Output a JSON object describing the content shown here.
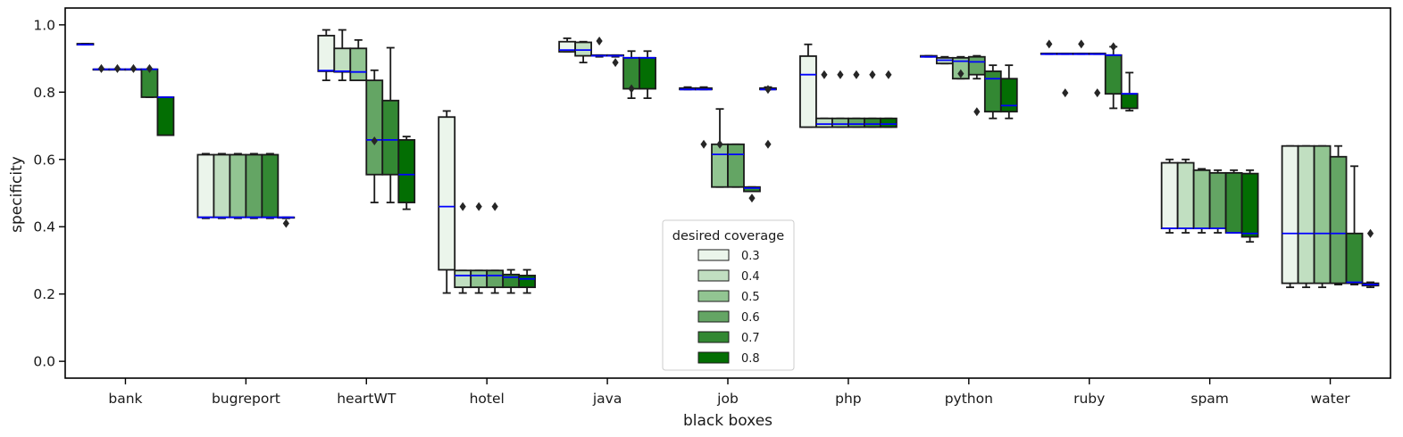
{
  "chart_data": {
    "type": "boxplot",
    "xlabel": "black boxes",
    "ylabel": "specificity",
    "ylim": [
      -0.05,
      1.05
    ],
    "yticks": [
      "0.0",
      "0.2",
      "0.4",
      "0.6",
      "0.8",
      "1.0"
    ],
    "categories": [
      "bank",
      "bugreport",
      "heartWT",
      "hotel",
      "java",
      "job",
      "php",
      "python",
      "ruby",
      "spam",
      "water"
    ],
    "legend": {
      "title": "desired coverage",
      "placement": "bottom-center",
      "entries": [
        "0.3",
        "0.4",
        "0.5",
        "0.6",
        "0.7",
        "0.8"
      ]
    },
    "colors": {
      "series": [
        "#ebf5eb",
        "#c1dfc1",
        "#92c592",
        "#64a564",
        "#338833",
        "#036e03"
      ],
      "median": "#0000ff",
      "edge": "#1a1a1a",
      "axis": "#000000"
    },
    "series": [
      {
        "name": "0.3",
        "boxes": [
          {
            "whislo": 0.941,
            "q1": 0.941,
            "med": 0.941,
            "q3": 0.944,
            "whishi": 0.944,
            "fliers": []
          },
          {
            "whislo": 0.425,
            "q1": 0.428,
            "med": 0.428,
            "q3": 0.614,
            "whishi": 0.617,
            "fliers": []
          },
          {
            "whislo": 0.835,
            "q1": 0.862,
            "med": 0.864,
            "q3": 0.968,
            "whishi": 0.985,
            "fliers": []
          },
          {
            "whislo": 0.203,
            "q1": 0.272,
            "med": 0.46,
            "q3": 0.726,
            "whishi": 0.744,
            "fliers": []
          },
          {
            "whislo": 0.92,
            "q1": 0.92,
            "med": 0.925,
            "q3": 0.95,
            "whishi": 0.96,
            "fliers": []
          },
          {
            "whislo": 0.808,
            "q1": 0.808,
            "med": 0.808,
            "q3": 0.812,
            "whishi": 0.815,
            "fliers": []
          },
          {
            "whislo": 0.696,
            "q1": 0.696,
            "med": 0.852,
            "q3": 0.907,
            "whishi": 0.942,
            "fliers": []
          },
          {
            "whislo": 0.905,
            "q1": 0.905,
            "med": 0.905,
            "q3": 0.908,
            "whishi": 0.908,
            "fliers": []
          },
          {
            "whislo": 0.913,
            "q1": 0.913,
            "med": 0.913,
            "q3": 0.915,
            "whishi": 0.915,
            "fliers": [
              0.943
            ]
          },
          {
            "whislo": 0.382,
            "q1": 0.395,
            "med": 0.395,
            "q3": 0.59,
            "whishi": 0.6,
            "fliers": []
          },
          {
            "whislo": 0.22,
            "q1": 0.232,
            "med": 0.38,
            "q3": 0.64,
            "whishi": 0.64,
            "fliers": []
          }
        ]
      },
      {
        "name": "0.4",
        "boxes": [
          {
            "whislo": 0.868,
            "q1": 0.868,
            "med": 0.868,
            "q3": 0.868,
            "whishi": 0.868,
            "fliers": [
              0.87
            ]
          },
          {
            "whislo": 0.425,
            "q1": 0.428,
            "med": 0.428,
            "q3": 0.614,
            "whishi": 0.617,
            "fliers": []
          },
          {
            "whislo": 0.835,
            "q1": 0.86,
            "med": 0.862,
            "q3": 0.93,
            "whishi": 0.985,
            "fliers": []
          },
          {
            "whislo": 0.203,
            "q1": 0.22,
            "med": 0.255,
            "q3": 0.27,
            "whishi": 0.27,
            "fliers": [
              0.46
            ]
          },
          {
            "whislo": 0.888,
            "q1": 0.908,
            "med": 0.925,
            "q3": 0.948,
            "whishi": 0.95,
            "fliers": []
          },
          {
            "whislo": 0.808,
            "q1": 0.808,
            "med": 0.808,
            "q3": 0.812,
            "whishi": 0.815,
            "fliers": [
              0.645
            ]
          },
          {
            "whislo": 0.696,
            "q1": 0.696,
            "med": 0.705,
            "q3": 0.722,
            "whishi": 0.722,
            "fliers": [
              0.852
            ]
          },
          {
            "whislo": 0.885,
            "q1": 0.885,
            "med": 0.895,
            "q3": 0.902,
            "whishi": 0.905,
            "fliers": []
          },
          {
            "whislo": 0.913,
            "q1": 0.913,
            "med": 0.913,
            "q3": 0.915,
            "whishi": 0.915,
            "fliers": [
              0.798
            ]
          },
          {
            "whislo": 0.382,
            "q1": 0.395,
            "med": 0.395,
            "q3": 0.59,
            "whishi": 0.6,
            "fliers": []
          },
          {
            "whislo": 0.22,
            "q1": 0.232,
            "med": 0.38,
            "q3": 0.64,
            "whishi": 0.64,
            "fliers": []
          }
        ]
      },
      {
        "name": "0.5",
        "boxes": [
          {
            "whislo": 0.868,
            "q1": 0.868,
            "med": 0.868,
            "q3": 0.868,
            "whishi": 0.868,
            "fliers": [
              0.87
            ]
          },
          {
            "whislo": 0.425,
            "q1": 0.428,
            "med": 0.428,
            "q3": 0.614,
            "whishi": 0.617,
            "fliers": []
          },
          {
            "whislo": 0.835,
            "q1": 0.835,
            "med": 0.86,
            "q3": 0.93,
            "whishi": 0.955,
            "fliers": []
          },
          {
            "whislo": 0.203,
            "q1": 0.22,
            "med": 0.255,
            "q3": 0.27,
            "whishi": 0.27,
            "fliers": [
              0.46
            ]
          },
          {
            "whislo": 0.905,
            "q1": 0.908,
            "med": 0.908,
            "q3": 0.91,
            "whishi": 0.91,
            "fliers": [
              0.952
            ]
          },
          {
            "whislo": 0.518,
            "q1": 0.518,
            "med": 0.615,
            "q3": 0.645,
            "whishi": 0.75,
            "fliers": [
              0.645
            ]
          },
          {
            "whislo": 0.696,
            "q1": 0.696,
            "med": 0.705,
            "q3": 0.722,
            "whishi": 0.722,
            "fliers": [
              0.852
            ]
          },
          {
            "whislo": 0.84,
            "q1": 0.84,
            "med": 0.892,
            "q3": 0.902,
            "whishi": 0.905,
            "fliers": [
              0.855
            ]
          },
          {
            "whislo": 0.913,
            "q1": 0.913,
            "med": 0.913,
            "q3": 0.915,
            "whishi": 0.915,
            "fliers": [
              0.943
            ]
          },
          {
            "whislo": 0.382,
            "q1": 0.395,
            "med": 0.395,
            "q3": 0.568,
            "whishi": 0.572,
            "fliers": []
          },
          {
            "whislo": 0.22,
            "q1": 0.232,
            "med": 0.38,
            "q3": 0.64,
            "whishi": 0.64,
            "fliers": []
          }
        ]
      },
      {
        "name": "0.6",
        "boxes": [
          {
            "whislo": 0.868,
            "q1": 0.868,
            "med": 0.868,
            "q3": 0.868,
            "whishi": 0.868,
            "fliers": [
              0.87
            ]
          },
          {
            "whislo": 0.425,
            "q1": 0.428,
            "med": 0.428,
            "q3": 0.614,
            "whishi": 0.617,
            "fliers": []
          },
          {
            "whislo": 0.472,
            "q1": 0.555,
            "med": 0.658,
            "q3": 0.835,
            "whishi": 0.865,
            "fliers": [
              0.655
            ]
          },
          {
            "whislo": 0.203,
            "q1": 0.22,
            "med": 0.255,
            "q3": 0.27,
            "whishi": 0.27,
            "fliers": [
              0.46
            ]
          },
          {
            "whislo": 0.905,
            "q1": 0.908,
            "med": 0.908,
            "q3": 0.91,
            "whishi": 0.91,
            "fliers": [
              0.888
            ]
          },
          {
            "whislo": 0.518,
            "q1": 0.518,
            "med": 0.615,
            "q3": 0.645,
            "whishi": 0.645,
            "fliers": []
          },
          {
            "whislo": 0.696,
            "q1": 0.696,
            "med": 0.705,
            "q3": 0.722,
            "whishi": 0.722,
            "fliers": [
              0.852
            ]
          },
          {
            "whislo": 0.84,
            "q1": 0.852,
            "med": 0.89,
            "q3": 0.905,
            "whishi": 0.908,
            "fliers": [
              0.742
            ]
          },
          {
            "whislo": 0.913,
            "q1": 0.913,
            "med": 0.913,
            "q3": 0.915,
            "whishi": 0.915,
            "fliers": [
              0.798
            ]
          },
          {
            "whislo": 0.382,
            "q1": 0.395,
            "med": 0.395,
            "q3": 0.56,
            "whishi": 0.568,
            "fliers": []
          },
          {
            "whislo": 0.228,
            "q1": 0.232,
            "med": 0.38,
            "q3": 0.608,
            "whishi": 0.64,
            "fliers": []
          }
        ]
      },
      {
        "name": "0.7",
        "boxes": [
          {
            "whislo": 0.785,
            "q1": 0.785,
            "med": 0.868,
            "q3": 0.868,
            "whishi": 0.868,
            "fliers": [
              0.87
            ]
          },
          {
            "whislo": 0.425,
            "q1": 0.428,
            "med": 0.428,
            "q3": 0.614,
            "whishi": 0.617,
            "fliers": []
          },
          {
            "whislo": 0.472,
            "q1": 0.555,
            "med": 0.658,
            "q3": 0.775,
            "whishi": 0.932,
            "fliers": []
          },
          {
            "whislo": 0.203,
            "q1": 0.22,
            "med": 0.25,
            "q3": 0.258,
            "whishi": 0.272,
            "fliers": []
          },
          {
            "whislo": 0.782,
            "q1": 0.81,
            "med": 0.902,
            "q3": 0.902,
            "whishi": 0.922,
            "fliers": [
              0.81
            ]
          },
          {
            "whislo": 0.505,
            "q1": 0.505,
            "med": 0.515,
            "q3": 0.518,
            "whishi": 0.518,
            "fliers": [
              0.485
            ]
          },
          {
            "whislo": 0.696,
            "q1": 0.696,
            "med": 0.705,
            "q3": 0.722,
            "whishi": 0.722,
            "fliers": [
              0.852
            ]
          },
          {
            "whislo": 0.722,
            "q1": 0.742,
            "med": 0.84,
            "q3": 0.862,
            "whishi": 0.88,
            "fliers": []
          },
          {
            "whislo": 0.752,
            "q1": 0.795,
            "med": 0.91,
            "q3": 0.91,
            "whishi": 0.935,
            "fliers": [
              0.935
            ]
          },
          {
            "whislo": 0.382,
            "q1": 0.382,
            "med": 0.382,
            "q3": 0.56,
            "whishi": 0.568,
            "fliers": []
          },
          {
            "whislo": 0.228,
            "q1": 0.232,
            "med": 0.235,
            "q3": 0.38,
            "whishi": 0.58,
            "fliers": []
          }
        ]
      },
      {
        "name": "0.8",
        "boxes": [
          {
            "whislo": 0.672,
            "q1": 0.672,
            "med": 0.785,
            "q3": 0.785,
            "whishi": 0.785,
            "fliers": []
          },
          {
            "whislo": 0.425,
            "q1": 0.428,
            "med": 0.428,
            "q3": 0.428,
            "whishi": 0.428,
            "fliers": [
              0.41
            ]
          },
          {
            "whislo": 0.452,
            "q1": 0.472,
            "med": 0.555,
            "q3": 0.658,
            "whishi": 0.668,
            "fliers": []
          },
          {
            "whislo": 0.203,
            "q1": 0.22,
            "med": 0.245,
            "q3": 0.255,
            "whishi": 0.272,
            "fliers": []
          },
          {
            "whislo": 0.782,
            "q1": 0.81,
            "med": 0.902,
            "q3": 0.902,
            "whishi": 0.922,
            "fliers": []
          },
          {
            "whislo": 0.808,
            "q1": 0.808,
            "med": 0.808,
            "q3": 0.812,
            "whishi": 0.815,
            "fliers": [
              0.808,
              0.645
            ]
          },
          {
            "whislo": 0.696,
            "q1": 0.696,
            "med": 0.705,
            "q3": 0.722,
            "whishi": 0.722,
            "fliers": [
              0.852
            ]
          },
          {
            "whislo": 0.722,
            "q1": 0.742,
            "med": 0.76,
            "q3": 0.84,
            "whishi": 0.88,
            "fliers": []
          },
          {
            "whislo": 0.745,
            "q1": 0.752,
            "med": 0.795,
            "q3": 0.795,
            "whishi": 0.858,
            "fliers": []
          },
          {
            "whislo": 0.355,
            "q1": 0.37,
            "med": 0.38,
            "q3": 0.558,
            "whishi": 0.568,
            "fliers": []
          },
          {
            "whislo": 0.22,
            "q1": 0.225,
            "med": 0.228,
            "q3": 0.232,
            "whishi": 0.235,
            "fliers": [
              0.38
            ]
          }
        ]
      }
    ]
  }
}
